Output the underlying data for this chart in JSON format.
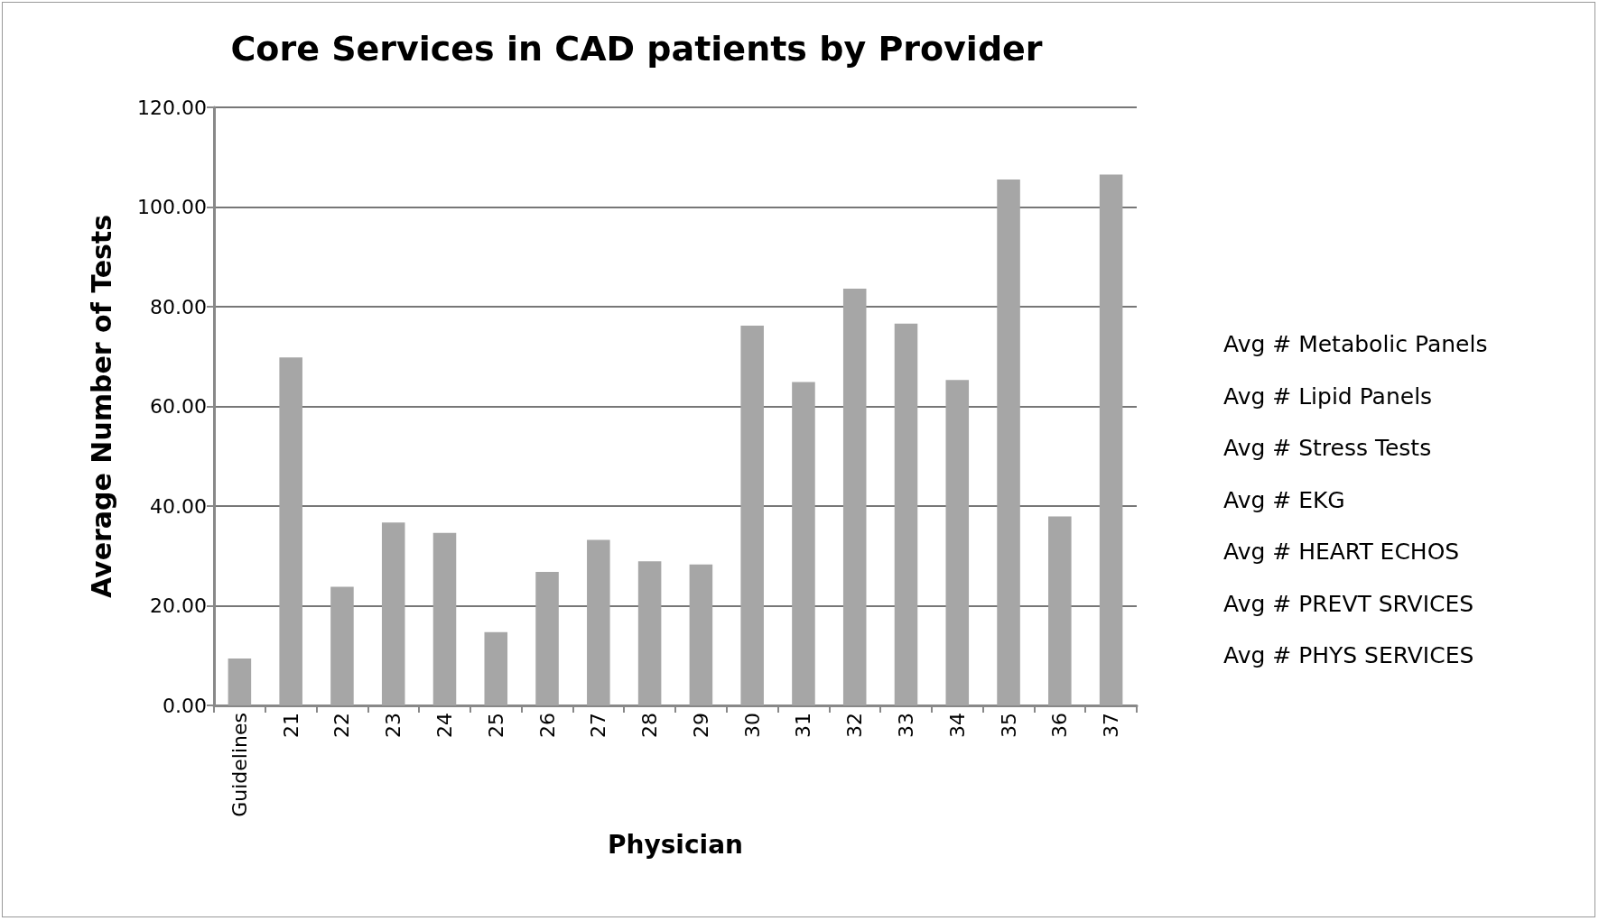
{
  "chart_data": {
    "type": "bar",
    "title": "Core Services in CAD patients by Provider",
    "xlabel": "Physician",
    "ylabel": "Average Number of Tests",
    "categories": [
      "Guidelines",
      "21",
      "22",
      "23",
      "24",
      "25",
      "26",
      "27",
      "28",
      "29",
      "30",
      "31",
      "32",
      "33",
      "34",
      "35",
      "36",
      "37"
    ],
    "values": [
      9.4,
      69.8,
      23.8,
      36.7,
      34.6,
      14.7,
      26.8,
      33.2,
      28.9,
      28.3,
      76.2,
      64.9,
      83.6,
      76.6,
      65.3,
      105.5,
      37.9,
      106.5
    ],
    "color": "#a6a6a6",
    "ylim": [
      0,
      120
    ],
    "yticks": [
      {
        "value": 0,
        "label": "0.00"
      },
      {
        "value": 20,
        "label": "20.00"
      },
      {
        "value": 40,
        "label": "40.00"
      },
      {
        "value": 60,
        "label": "60.00"
      },
      {
        "value": 80,
        "label": "80.00"
      },
      {
        "value": 100,
        "label": "100.00"
      },
      {
        "value": 120,
        "label": "120.00"
      }
    ],
    "grid": "y",
    "annotations": [
      "Avg # Metabolic Panels",
      "Avg # Lipid Panels",
      "Avg # Stress Tests",
      "Avg # EKG",
      "Avg # HEART ECHOS",
      "Avg # PREVT SRVICES",
      "Avg # PHYS SERVICES"
    ]
  }
}
